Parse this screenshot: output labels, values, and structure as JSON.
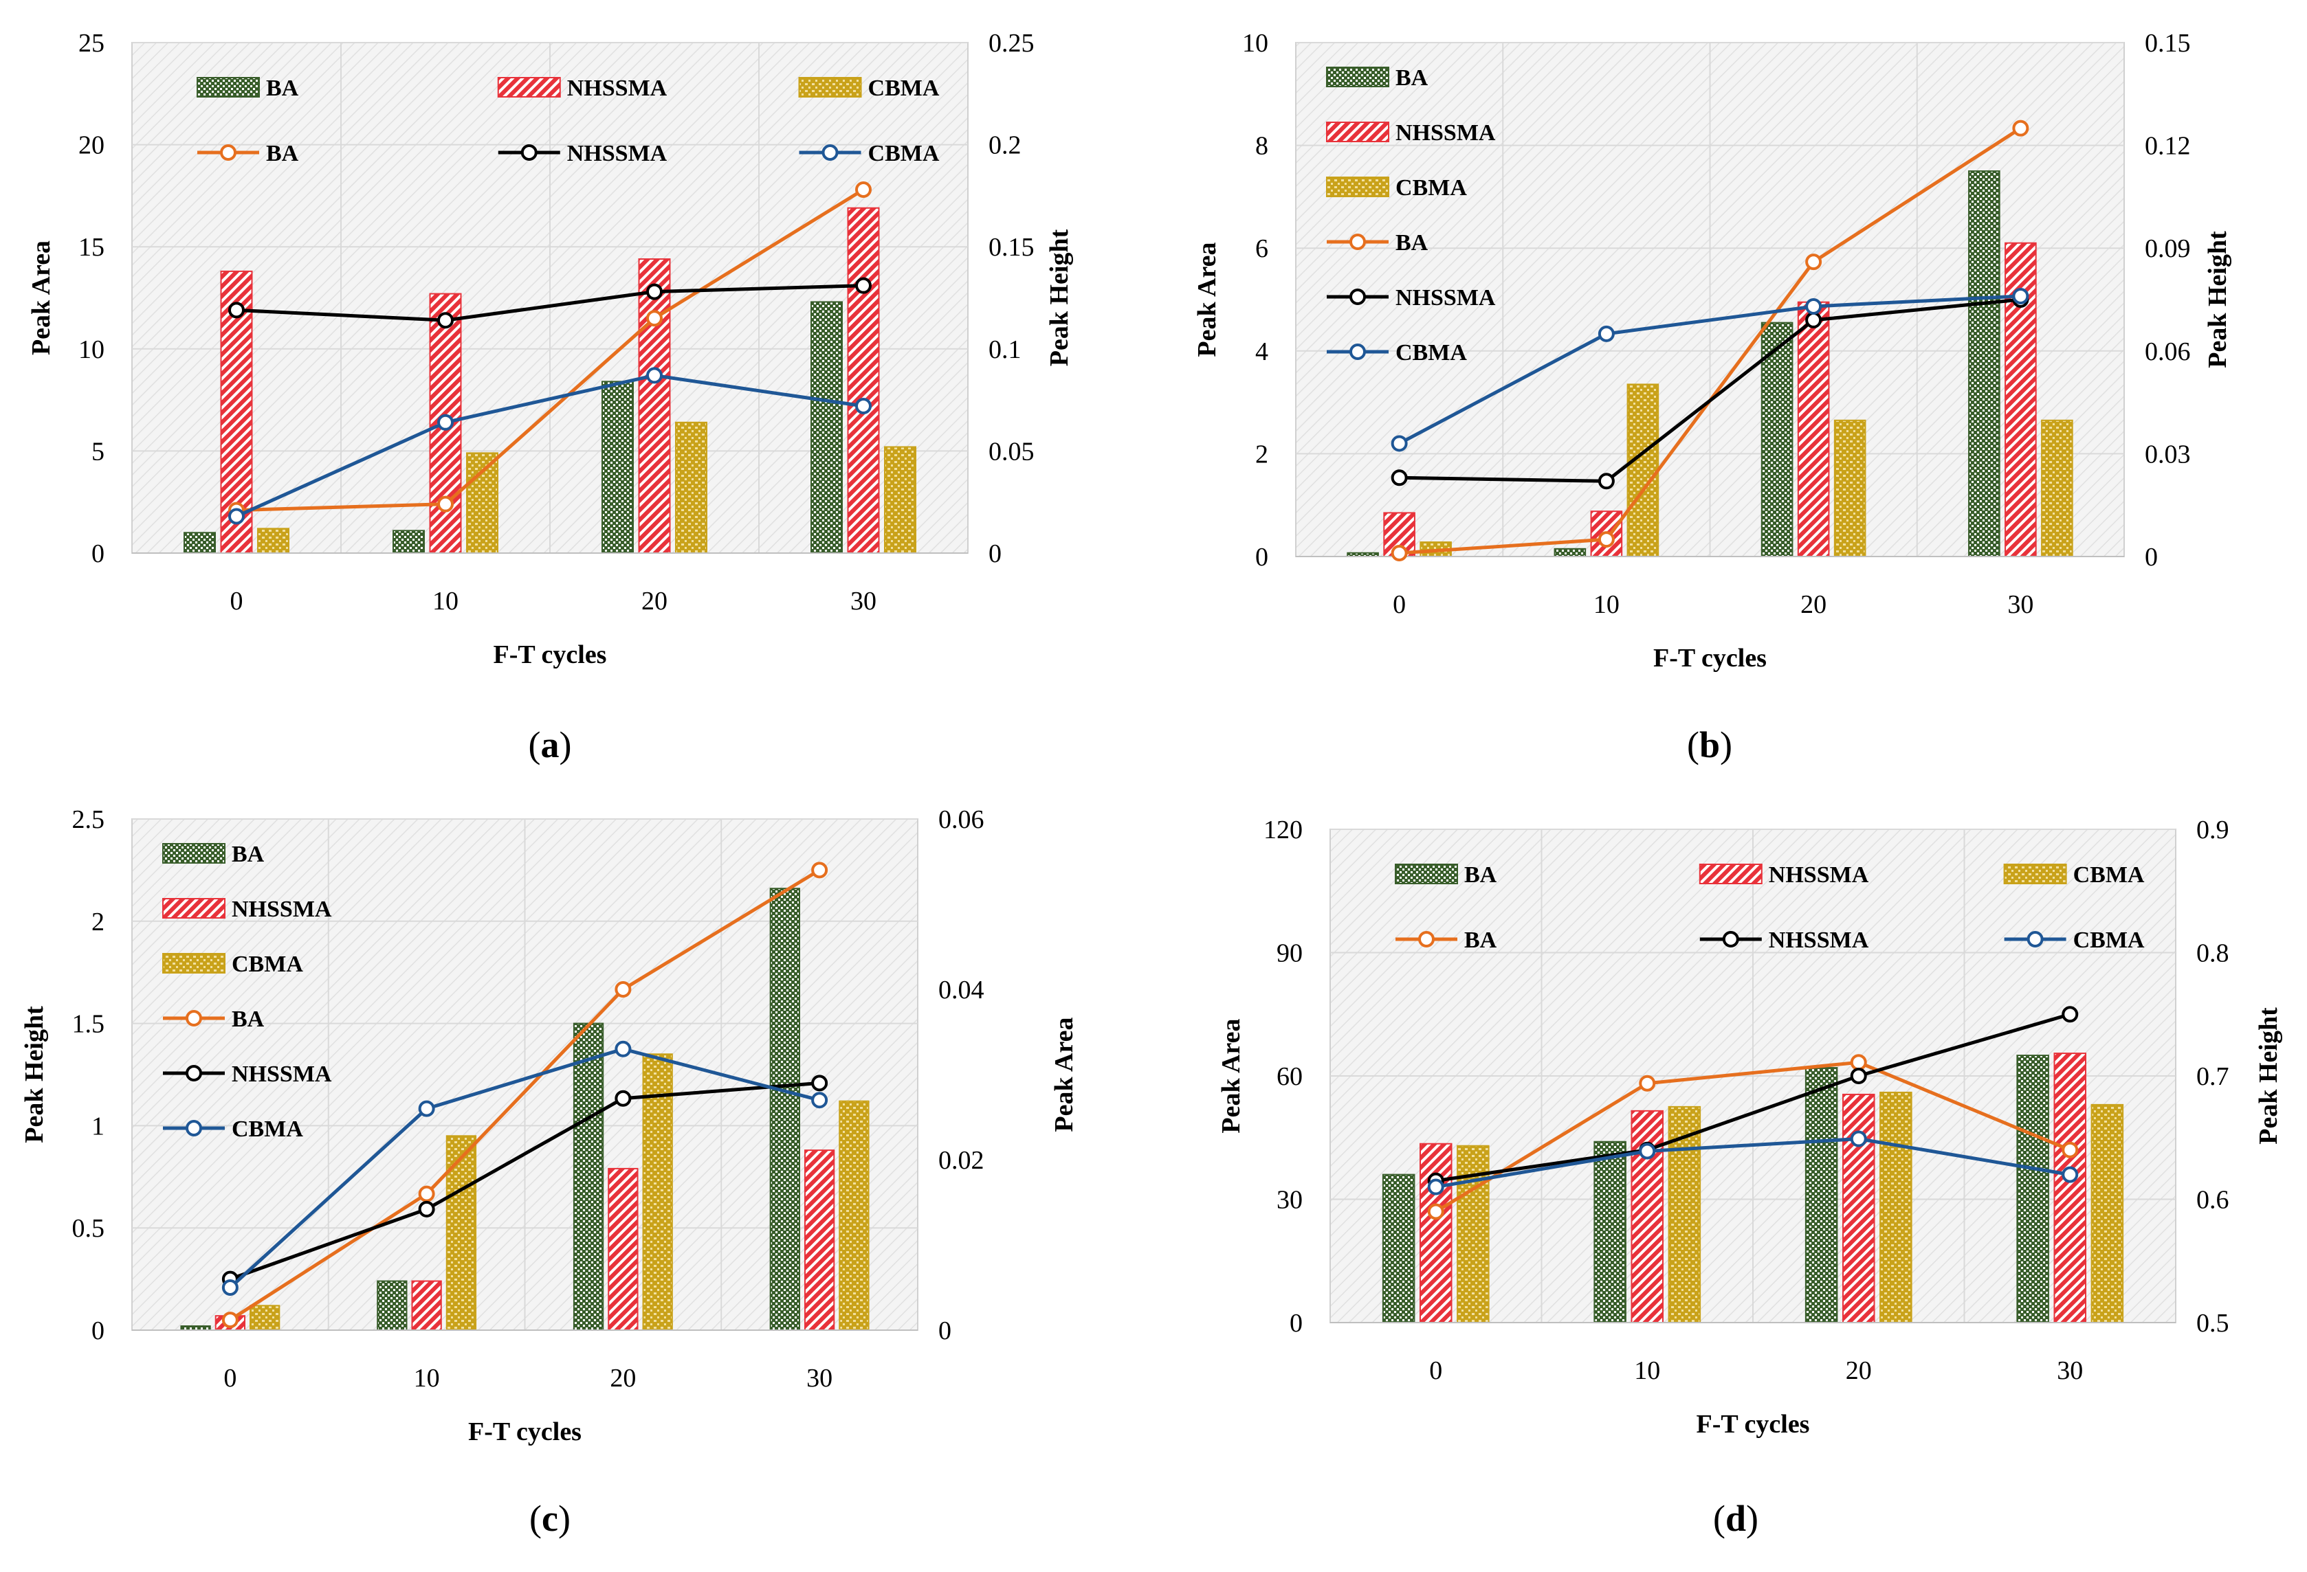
{
  "colors": {
    "BA_bar": "#385D2A",
    "NHSSMA_bar": "#E8323A",
    "CBMA_bar": "#C9A21A",
    "BA_line": "#E66F1E",
    "NHSSMA_line": "#000000",
    "CBMA_line": "#1F5796",
    "plot_bg": "#F2F2F2",
    "grid": "#D9D9D9"
  },
  "chart_data": [
    {
      "panel": "a",
      "caption": "(a)",
      "type": "bar",
      "xlabel": "F-T cycles",
      "ylabel_left": "Peak Area",
      "ylabel_right": "Peak Height",
      "categories": [
        "0",
        "10",
        "20",
        "30"
      ],
      "ylim_left": [
        0,
        25
      ],
      "yticks_left": [
        "0",
        "5",
        "10",
        "15",
        "20",
        "25"
      ],
      "ylim_right": [
        0,
        0.25
      ],
      "yticks_right": [
        "0",
        "0.05",
        "0.1",
        "0.15",
        "0.2",
        "0.25"
      ],
      "legend_layout": "grid",
      "bars_axis": "left",
      "lines_axis": "right",
      "bar_series": [
        {
          "name": "BA",
          "values": [
            1.0,
            1.1,
            8.4,
            12.3
          ]
        },
        {
          "name": "NHSSMA",
          "values": [
            13.8,
            12.7,
            14.4,
            16.9
          ]
        },
        {
          "name": "CBMA",
          "values": [
            1.2,
            4.9,
            6.4,
            5.2
          ]
        }
      ],
      "line_series": [
        {
          "name": "BA",
          "values": [
            0.021,
            0.024,
            0.115,
            0.178
          ]
        },
        {
          "name": "NHSSMA",
          "values": [
            0.119,
            0.114,
            0.128,
            0.131
          ]
        },
        {
          "name": "CBMA",
          "values": [
            0.018,
            0.064,
            0.087,
            0.072
          ]
        }
      ]
    },
    {
      "panel": "b",
      "caption": "(b)",
      "type": "bar",
      "xlabel": "F-T cycles",
      "ylabel_left": "Peak Area",
      "ylabel_right": "Peak Height",
      "categories": [
        "0",
        "10",
        "20",
        "30"
      ],
      "ylim_left": [
        0,
        10
      ],
      "yticks_left": [
        "0",
        "2",
        "4",
        "6",
        "8",
        "10"
      ],
      "ylim_right": [
        0,
        0.15
      ],
      "yticks_right": [
        "0",
        "0.03",
        "0.06",
        "0.09",
        "0.12",
        "0.15"
      ],
      "legend_layout": "column",
      "bars_axis": "left",
      "lines_axis": "right",
      "bar_series": [
        {
          "name": "BA",
          "values": [
            0.07,
            0.15,
            4.55,
            7.5
          ]
        },
        {
          "name": "NHSSMA",
          "values": [
            0.85,
            0.88,
            4.95,
            6.1
          ]
        },
        {
          "name": "CBMA",
          "values": [
            0.28,
            3.35,
            2.65,
            2.65
          ]
        }
      ],
      "line_series": [
        {
          "name": "BA",
          "values": [
            0.001,
            0.005,
            0.086,
            0.125
          ]
        },
        {
          "name": "NHSSMA",
          "values": [
            0.023,
            0.022,
            0.069,
            0.075
          ]
        },
        {
          "name": "CBMA",
          "values": [
            0.033,
            0.065,
            0.073,
            0.076
          ]
        }
      ]
    },
    {
      "panel": "c",
      "caption": "(c)",
      "type": "bar",
      "xlabel": "F-T cycles",
      "ylabel_left": "Peak Height",
      "ylabel_right": "Peak Area",
      "categories": [
        "0",
        "10",
        "20",
        "30"
      ],
      "ylim_left": [
        0,
        2.5
      ],
      "yticks_left": [
        "0",
        "0.5",
        "1",
        "1.5",
        "2",
        "2.5"
      ],
      "ylim_right": [
        0,
        0.06
      ],
      "yticks_right": [
        "0",
        "0.02",
        "0.04",
        "0.06"
      ],
      "legend_layout": "column",
      "bars_axis": "left",
      "lines_axis": "right",
      "bar_series": [
        {
          "name": "BA",
          "values": [
            0.02,
            0.24,
            1.5,
            2.16
          ]
        },
        {
          "name": "NHSSMA",
          "values": [
            0.07,
            0.24,
            0.79,
            0.88
          ]
        },
        {
          "name": "CBMA",
          "values": [
            0.12,
            0.95,
            1.35,
            1.12
          ]
        }
      ],
      "line_series": [
        {
          "name": "BA",
          "values": [
            0.0012,
            0.016,
            0.04,
            0.054
          ]
        },
        {
          "name": "NHSSMA",
          "values": [
            0.006,
            0.0142,
            0.0272,
            0.029
          ]
        },
        {
          "name": "CBMA",
          "values": [
            0.005,
            0.026,
            0.033,
            0.027
          ]
        }
      ]
    },
    {
      "panel": "d",
      "caption": "(d)",
      "type": "bar",
      "xlabel": "F-T cycles",
      "ylabel_left": "Peak Area",
      "ylabel_right": "Peak Height",
      "categories": [
        "0",
        "10",
        "20",
        "30"
      ],
      "ylim_left": [
        0,
        120
      ],
      "yticks_left": [
        "0",
        "30",
        "60",
        "90",
        "120"
      ],
      "ylim_right": [
        0.5,
        0.9
      ],
      "yticks_right": [
        "0.5",
        "0.6",
        "0.7",
        "0.8",
        "0.9"
      ],
      "legend_layout": "grid",
      "bars_axis": "left",
      "lines_axis": "right",
      "bar_series": [
        {
          "name": "BA",
          "values": [
            36,
            44,
            62,
            65
          ]
        },
        {
          "name": "NHSSMA",
          "values": [
            43.5,
            51.5,
            55.5,
            65.5
          ]
        },
        {
          "name": "CBMA",
          "values": [
            43,
            52.5,
            56,
            53
          ]
        }
      ],
      "line_series": [
        {
          "name": "BA",
          "values": [
            0.59,
            0.694,
            0.711,
            0.64
          ]
        },
        {
          "name": "NHSSMA",
          "values": [
            0.615,
            0.64,
            0.7,
            0.75
          ]
        },
        {
          "name": "CBMA",
          "values": [
            0.61,
            0.639,
            0.649,
            0.62
          ]
        }
      ]
    }
  ]
}
